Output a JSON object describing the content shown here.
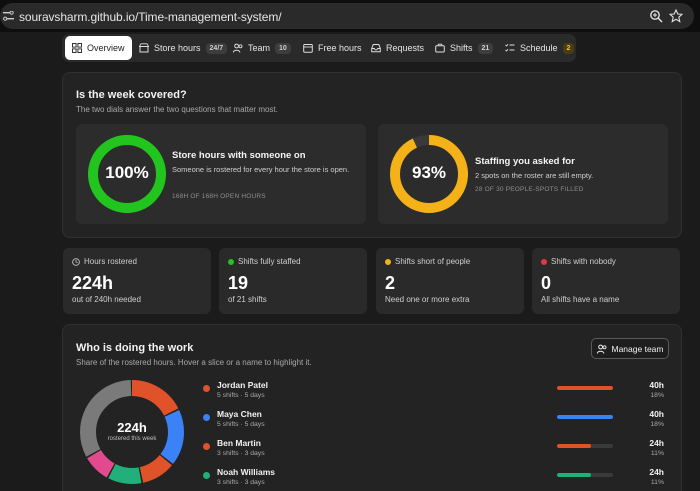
{
  "browser": {
    "url": "souravsharm.github.io/Time-management-system/"
  },
  "nav": {
    "tabs": [
      {
        "label": "Overview",
        "badge": null,
        "icon": "grid-icon"
      },
      {
        "label": "Store hours",
        "badge": "24/7",
        "icon": "store-icon"
      },
      {
        "label": "Team",
        "badge": "10",
        "icon": "users-icon"
      },
      {
        "label": "Free hours",
        "badge": null,
        "icon": "calendar-icon"
      },
      {
        "label": "Requests",
        "badge": null,
        "icon": "inbox-icon"
      },
      {
        "label": "Shifts",
        "badge": "21",
        "icon": "briefcase-icon"
      },
      {
        "label": "Schedule",
        "badge": "2",
        "icon": "list-check-icon"
      }
    ]
  },
  "coverage": {
    "title": "Is the week covered?",
    "subtitle": "The two dials answer the two questions that matter most.",
    "dials": [
      {
        "value_text": "100%",
        "fraction": 1.0,
        "color": "#22c51e",
        "title": "Store hours with someone on",
        "desc": "Someone is rostered for every hour the store is open.",
        "foot": "168H OF 168H OPEN HOURS"
      },
      {
        "value_text": "93%",
        "fraction": 0.93,
        "color": "#f5b218",
        "title": "Staffing you asked for",
        "desc": "2 spots on the roster are still empty.",
        "foot": "28 OF 30 PEOPLE-SPOTS FILLED"
      }
    ]
  },
  "stats": [
    {
      "label": "Hours rostered",
      "value": "224h",
      "caption": "out of 240h needed",
      "icon": "clock-icon",
      "color": null
    },
    {
      "label": "Shifts fully staffed",
      "value": "19",
      "caption": "of 21 shifts",
      "icon": null,
      "color": "#22c51e"
    },
    {
      "label": "Shifts short of people",
      "value": "2",
      "caption": "Need one or more extra",
      "icon": null,
      "color": "#f5b218"
    },
    {
      "label": "Shifts with nobody",
      "value": "0",
      "caption": "All shifts have a name",
      "icon": null,
      "color": "#e0393e"
    }
  ],
  "work": {
    "title": "Who is doing the work",
    "subtitle": "Share of the rostered hours. Hover a slice or a name to highlight it.",
    "manage_label": "Manage team",
    "donut_value": "224h",
    "donut_caption": "rostered this week",
    "people": [
      {
        "name": "Jordan Patel",
        "meta": "5 shifts · 5 days",
        "hours": "40h",
        "pct": "18%",
        "share": 0.18,
        "bar": 1.0,
        "color": "#e0522a"
      },
      {
        "name": "Maya Chen",
        "meta": "5 shifts · 5 days",
        "hours": "40h",
        "pct": "18%",
        "share": 0.18,
        "bar": 1.0,
        "color": "#3b82f6"
      },
      {
        "name": "Ben Martin",
        "meta": "3 shifts · 3 days",
        "hours": "24h",
        "pct": "11%",
        "share": 0.11,
        "bar": 0.6,
        "color": "#e0522a"
      },
      {
        "name": "Noah Williams",
        "meta": "3 shifts · 3 days",
        "hours": "24h",
        "pct": "11%",
        "share": 0.11,
        "bar": 0.6,
        "color": "#22b07a"
      }
    ],
    "donut_slices": [
      {
        "share": 0.18,
        "color": "#e0522a"
      },
      {
        "share": 0.18,
        "color": "#3b82f6"
      },
      {
        "share": 0.11,
        "color": "#e0522a"
      },
      {
        "share": 0.11,
        "color": "#22b07a"
      },
      {
        "share": 0.09,
        "color": "#e14a8c"
      },
      {
        "share": 0.33,
        "color": "#7a7a7a"
      }
    ]
  }
}
